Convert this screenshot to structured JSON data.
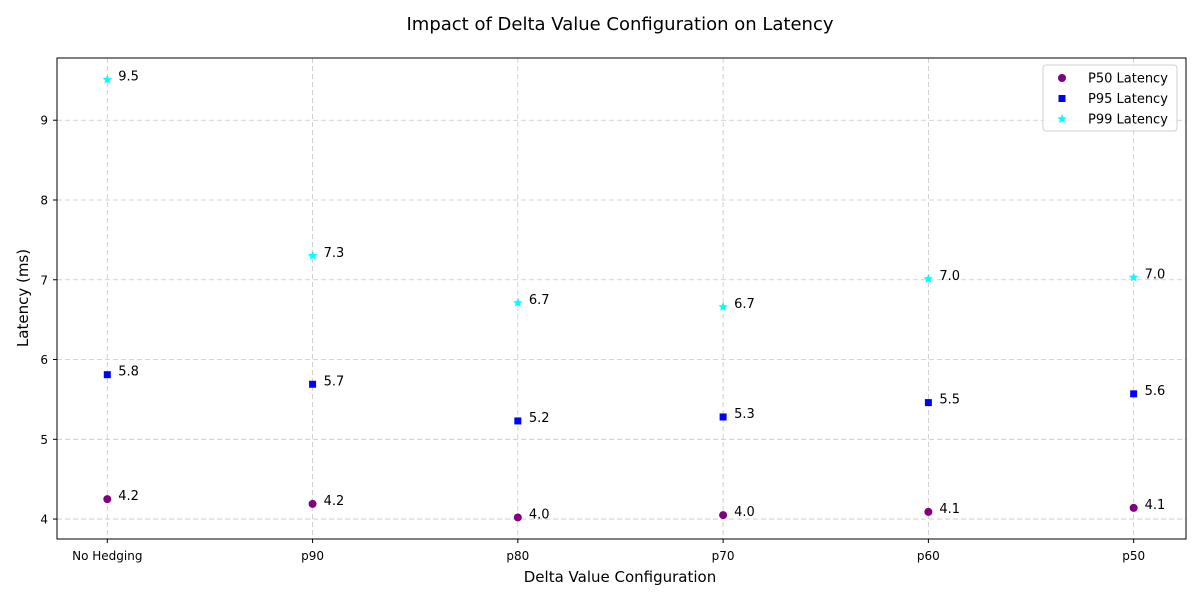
{
  "chart_data": {
    "type": "scatter",
    "title": "Impact of Delta Value Configuration on Latency",
    "xlabel": "Delta Value Configuration",
    "ylabel": "Latency (ms)",
    "categories": [
      "No Hedging",
      "p90",
      "p80",
      "p70",
      "p60",
      "p50"
    ],
    "ylim": [
      3.75,
      9.78
    ],
    "yticks": [
      4,
      5,
      6,
      7,
      8,
      9
    ],
    "grid": true,
    "legend_position": "top-right",
    "series": [
      {
        "name": "P50 Latency",
        "marker": "circle",
        "color": "#800080",
        "values": [
          4.25,
          4.19,
          4.02,
          4.05,
          4.09,
          4.14
        ],
        "labels": [
          "4.2",
          "4.2",
          "4.0",
          "4.0",
          "4.1",
          "4.1"
        ]
      },
      {
        "name": "P95 Latency",
        "marker": "square",
        "color": "#0000ff",
        "values": [
          5.81,
          5.69,
          5.23,
          5.28,
          5.46,
          5.57
        ],
        "labels": [
          "5.8",
          "5.7",
          "5.2",
          "5.3",
          "5.5",
          "5.6"
        ]
      },
      {
        "name": "P99 Latency",
        "marker": "star",
        "color": "#00ffff",
        "values": [
          9.51,
          7.3,
          6.71,
          6.66,
          7.01,
          7.03
        ],
        "labels": [
          "9.5",
          "7.3",
          "6.7",
          "6.7",
          "7.0",
          "7.0"
        ]
      }
    ]
  }
}
